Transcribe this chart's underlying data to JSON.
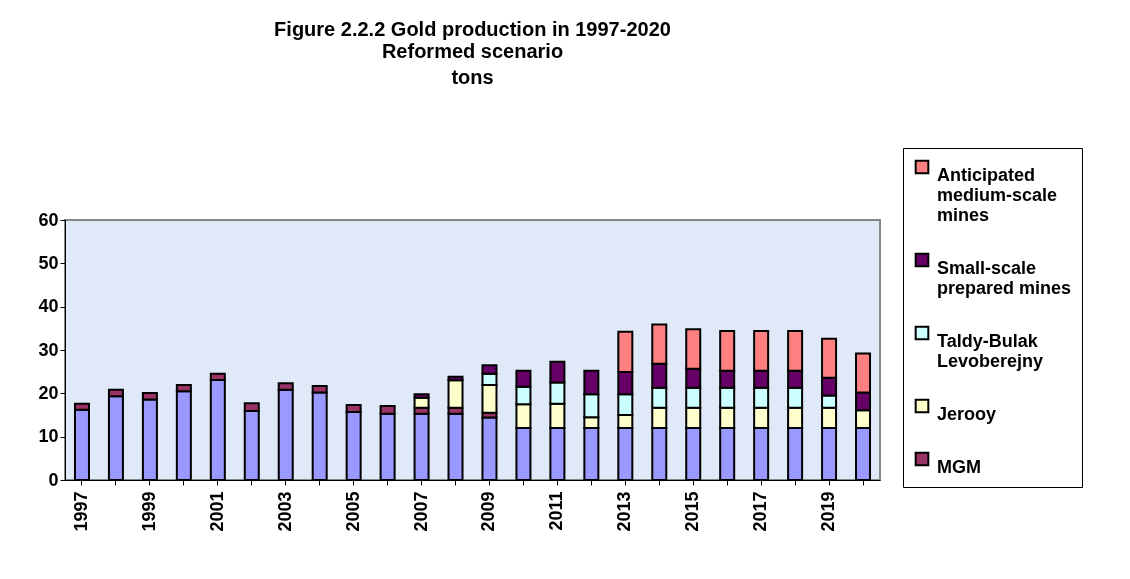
{
  "chart_data": {
    "type": "bar",
    "title": "Figure 2.2.2 Gold production in 1997-2020",
    "subtitle": "Reformed scenario\ntons",
    "stacked": true,
    "legend": "right",
    "grid": false,
    "categories": [
      "1997",
      null,
      "1999",
      null,
      "2001",
      null,
      "2003",
      null,
      "2005",
      null,
      "2007",
      null,
      "2009",
      null,
      "2011",
      null,
      "2013",
      null,
      "2015",
      null,
      "2017",
      null,
      "2019",
      null
    ],
    "ylim": [
      0,
      60
    ],
    "yticks": [
      0,
      10,
      20,
      30,
      40,
      50,
      60
    ],
    "series": [
      {
        "color": "#9999ff",
        "values": [
          16.2,
          19.3,
          18.6,
          20.5,
          23.1,
          15.9,
          20.8,
          20.2,
          15.7,
          15.3,
          15.3,
          15.3,
          14.4,
          12,
          12,
          12,
          12,
          12,
          12,
          12,
          12,
          12,
          12,
          12
        ]
      },
      {
        "name": "MGM",
        "color": "#993366",
        "values": [
          1.4,
          1.5,
          1.5,
          1.4,
          1.4,
          1.8,
          1.5,
          1.5,
          1.6,
          1.8,
          1.4,
          1.4,
          1.1,
          null,
          null,
          null,
          null,
          null,
          null,
          null,
          null,
          null,
          null,
          null
        ]
      },
      {
        "name": "Jerooy",
        "color": "#ffffcc",
        "values": [
          null,
          null,
          null,
          null,
          null,
          null,
          null,
          null,
          null,
          null,
          2.3,
          6.3,
          6.4,
          5.5,
          5.6,
          2.5,
          3,
          4.7,
          4.7,
          4.7,
          4.7,
          4.7,
          4.7,
          4.1
        ]
      },
      {
        "name": "Taldy-Bulak Levoberejny",
        "color": "#ccffff",
        "values": [
          null,
          null,
          null,
          null,
          null,
          null,
          null,
          null,
          null,
          null,
          null,
          null,
          2.6,
          4,
          4.9,
          5.3,
          4.8,
          4.6,
          4.6,
          4.6,
          4.6,
          4.6,
          2.8,
          null
        ]
      },
      {
        "name": "Small-scale prepared mines",
        "color": "#660066",
        "values": [
          null,
          null,
          null,
          null,
          null,
          null,
          null,
          null,
          null,
          null,
          0.8,
          0.8,
          2,
          3.7,
          4.8,
          5.4,
          5.1,
          5.5,
          4.4,
          3.9,
          3.9,
          3.9,
          4.1,
          4.1
        ]
      },
      {
        "name": "Anticipated medium-scale mines",
        "color": "#ff8080",
        "values": [
          null,
          null,
          null,
          null,
          null,
          null,
          null,
          null,
          null,
          null,
          null,
          null,
          null,
          null,
          null,
          null,
          9.3,
          9.1,
          9.1,
          9.2,
          9.2,
          9.2,
          9,
          9
        ]
      }
    ]
  }
}
